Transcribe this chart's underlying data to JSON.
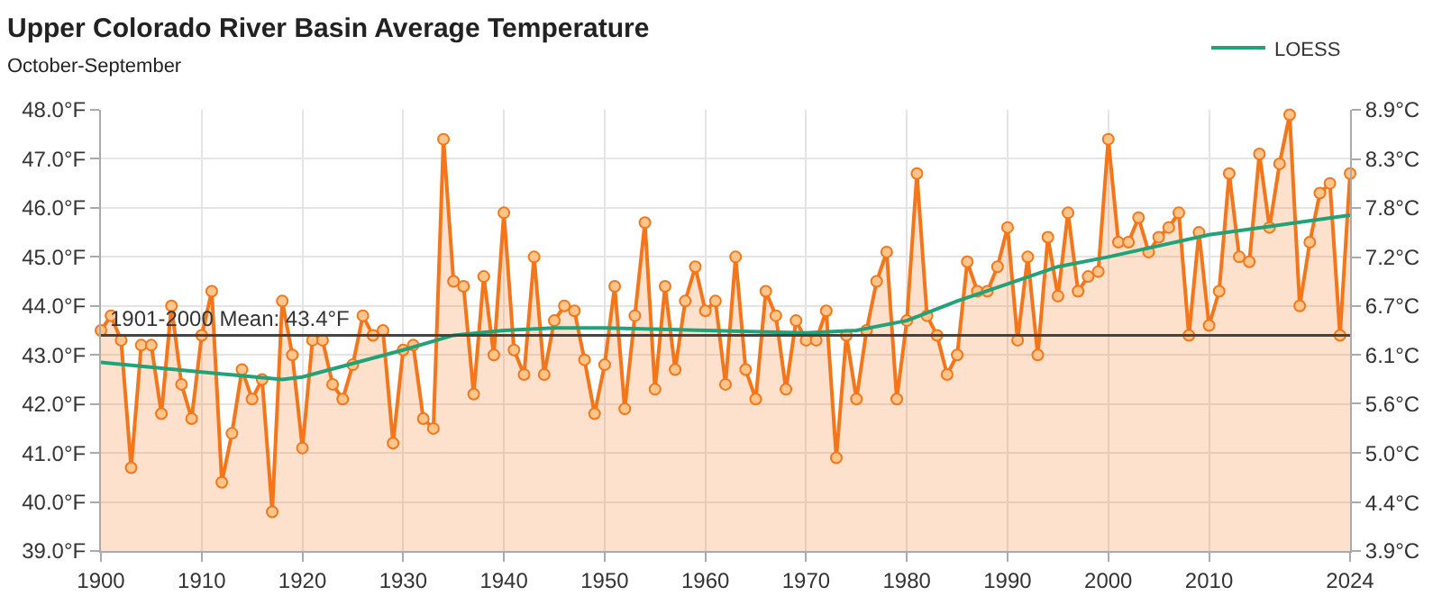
{
  "chart_data": {
    "type": "area",
    "title": "Upper Colorado River Basin Average Temperature",
    "subtitle": "October-September",
    "x": [
      1900,
      1901,
      1902,
      1903,
      1904,
      1905,
      1906,
      1907,
      1908,
      1909,
      1910,
      1911,
      1912,
      1913,
      1914,
      1915,
      1916,
      1917,
      1918,
      1919,
      1920,
      1921,
      1922,
      1923,
      1924,
      1925,
      1926,
      1927,
      1928,
      1929,
      1930,
      1931,
      1932,
      1933,
      1934,
      1935,
      1936,
      1937,
      1938,
      1939,
      1940,
      1941,
      1942,
      1943,
      1944,
      1945,
      1946,
      1947,
      1948,
      1949,
      1950,
      1951,
      1952,
      1953,
      1954,
      1955,
      1956,
      1957,
      1958,
      1959,
      1960,
      1961,
      1962,
      1963,
      1964,
      1965,
      1966,
      1967,
      1968,
      1969,
      1970,
      1971,
      1972,
      1973,
      1974,
      1975,
      1976,
      1977,
      1978,
      1979,
      1980,
      1981,
      1982,
      1983,
      1984,
      1985,
      1986,
      1987,
      1988,
      1989,
      1990,
      1991,
      1992,
      1993,
      1994,
      1995,
      1996,
      1997,
      1998,
      1999,
      2000,
      2001,
      2002,
      2003,
      2004,
      2005,
      2006,
      2007,
      2008,
      2009,
      2010,
      2011,
      2012,
      2013,
      2014,
      2015,
      2016,
      2017,
      2018,
      2019,
      2020,
      2021,
      2022,
      2023,
      2024
    ],
    "series": [
      {
        "color": "#f5761a",
        "marker": "circle",
        "values": [
          43.5,
          43.8,
          43.3,
          40.7,
          43.2,
          43.2,
          41.8,
          44.0,
          42.4,
          41.7,
          43.4,
          44.3,
          40.4,
          41.4,
          42.7,
          42.1,
          42.5,
          39.8,
          44.1,
          43.0,
          41.1,
          43.3,
          43.3,
          42.4,
          42.1,
          42.8,
          43.8,
          43.4,
          43.5,
          41.2,
          43.1,
          43.2,
          41.7,
          41.5,
          47.4,
          44.5,
          44.4,
          42.2,
          44.6,
          43.0,
          45.9,
          43.1,
          42.6,
          45.0,
          42.6,
          43.7,
          44.0,
          43.9,
          42.9,
          41.8,
          42.8,
          44.4,
          41.9,
          43.8,
          45.7,
          42.3,
          44.4,
          42.7,
          44.1,
          44.8,
          43.9,
          44.1,
          42.4,
          45.0,
          42.7,
          42.1,
          44.3,
          43.8,
          42.3,
          43.7,
          43.3,
          43.3,
          43.9,
          40.9,
          43.4,
          42.1,
          43.5,
          44.5,
          45.1,
          42.1,
          43.7,
          46.7,
          43.8,
          43.4,
          42.6,
          43.0,
          44.9,
          44.3,
          44.3,
          44.8,
          45.6,
          43.3,
          45.0,
          43.0,
          45.4,
          44.2,
          45.9,
          44.3,
          44.6,
          44.7,
          47.4,
          45.3,
          45.3,
          45.8,
          45.1,
          45.4,
          45.6,
          45.9,
          43.4,
          45.5,
          43.6,
          44.3,
          46.7,
          45.0,
          44.9,
          47.1,
          45.6,
          46.9,
          47.9,
          44.0,
          45.3,
          46.3,
          46.5,
          43.4,
          46.7
        ]
      },
      {
        "type": "line",
        "name": "LOESS",
        "color": "#23a27a",
        "marker": "none",
        "x": [
          1900,
          1910,
          1918,
          1920,
          1930,
          1935,
          1940,
          1945,
          1950,
          1960,
          1970,
          1975,
          1980,
          1985,
          1990,
          1995,
          2000,
          2010,
          2024
        ],
        "values": [
          42.85,
          42.65,
          42.5,
          42.55,
          43.1,
          43.4,
          43.5,
          43.55,
          43.55,
          43.5,
          43.45,
          43.5,
          43.7,
          44.1,
          44.45,
          44.8,
          45.0,
          45.45,
          45.85
        ]
      }
    ],
    "xlim": [
      1900,
      2024
    ],
    "xticks": [
      1900,
      1910,
      1920,
      1930,
      1940,
      1950,
      1960,
      1970,
      1980,
      1990,
      2000,
      2010,
      2024
    ],
    "ylim": [
      39,
      48
    ],
    "yticks": [
      {
        "value": 39,
        "label": "39.0°F"
      },
      {
        "value": 40,
        "label": "40.0°F"
      },
      {
        "value": 41,
        "label": "41.0°F"
      },
      {
        "value": 42,
        "label": "42.0°F"
      },
      {
        "value": 43,
        "label": "43.0°F"
      },
      {
        "value": 44,
        "label": "44.0°F"
      },
      {
        "value": 45,
        "label": "45.0°F"
      },
      {
        "value": 46,
        "label": "46.0°F"
      },
      {
        "value": 47,
        "label": "47.0°F"
      },
      {
        "value": 48,
        "label": "48.0°F"
      }
    ],
    "y2lim": [
      3.89,
      8.89
    ],
    "y2ticks": [
      {
        "value": 3.89,
        "label": "3.9°C"
      },
      {
        "value": 4.44,
        "label": "4.4°C"
      },
      {
        "value": 5.0,
        "label": "5.0°C"
      },
      {
        "value": 5.56,
        "label": "5.6°C"
      },
      {
        "value": 6.11,
        "label": "6.1°C"
      },
      {
        "value": 6.67,
        "label": "6.7°C"
      },
      {
        "value": 7.22,
        "label": "7.2°C"
      },
      {
        "value": 7.78,
        "label": "7.8°C"
      },
      {
        "value": 8.33,
        "label": "8.3°C"
      },
      {
        "value": 8.89,
        "label": "8.9°C"
      }
    ],
    "ref_lines": [
      {
        "axis": "y",
        "value": 43.4,
        "label": "1901-2000 Mean: 43.4°F",
        "color": "#444444"
      }
    ],
    "grid": true,
    "legend": "top right"
  }
}
